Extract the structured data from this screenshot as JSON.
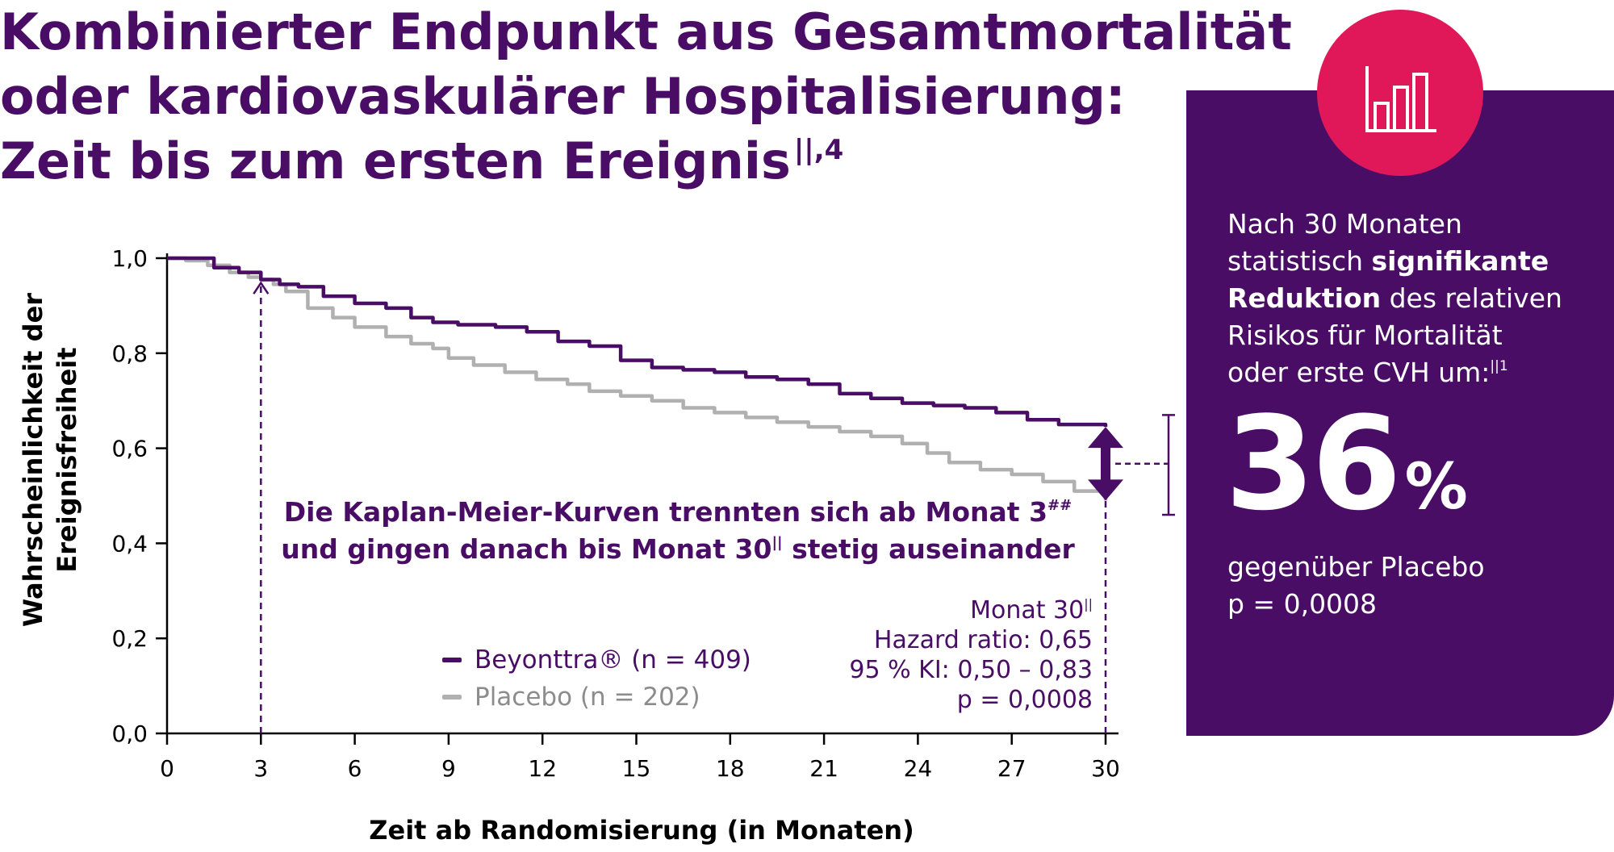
{
  "title": {
    "line1": "Kombinierter Endpunkt aus Gesamtmortalität",
    "line2": "oder kardiovaskulärer Hospitalisierung:",
    "line3": "Zeit bis zum ersten Ereignis",
    "line3_superscript": "||,4"
  },
  "colors": {
    "brand_purple": "#4a0d66",
    "accent_pink": "#e0185a",
    "placebo_gray": "#b0b0b0"
  },
  "badge": {
    "icon": "bar-chart-icon"
  },
  "panel": {
    "line1": "Nach 30 Monaten",
    "line2_prefix": "statistisch ",
    "line2_bold": "signifikante",
    "line3_bold": "Reduktion",
    "line3_suffix": " des relativen",
    "line4": "Risikos für Mortalität",
    "line5": "oder erste CVH um:",
    "line5_superscript": "||1",
    "big_number": "36",
    "big_unit": "%",
    "foot1": "gegenüber Placebo",
    "foot2": "p = 0,0008"
  },
  "annotation": {
    "line1": "Die Kaplan-Meier-Kurven trennten sich ab Monat 3",
    "line1_superscript": "##",
    "line2_prefix": "und gingen danach bis Monat 30",
    "line2_superscript": "||",
    "line2_suffix": " stetig auseinander"
  },
  "stats": {
    "line1": "Monat 30",
    "line1_superscript": "||",
    "line2": "Hazard ratio: 0,65",
    "line3": "95 % KI: 0,50 – 0,83",
    "line4": "p = 0,0008"
  },
  "chart_data": {
    "type": "line",
    "xlabel": "Zeit ab Randomisierung (in Monaten)",
    "ylabel": "Wahrscheinlichkeit der Ereignisfreiheit",
    "xlim": [
      0,
      30
    ],
    "ylim": [
      0,
      1
    ],
    "x_ticks": [
      "0",
      "3",
      "6",
      "9",
      "12",
      "15",
      "18",
      "21",
      "24",
      "27",
      "30"
    ],
    "y_ticks": [
      "0,0",
      "0,2",
      "0,4",
      "0,6",
      "0,8",
      "1,0"
    ],
    "x_tick_values": [
      0,
      3,
      6,
      9,
      12,
      15,
      18,
      21,
      24,
      27,
      30
    ],
    "y_tick_values": [
      0,
      0.2,
      0.4,
      0.6,
      0.8,
      1.0
    ],
    "grid": false,
    "legend": "bottom-center",
    "series": [
      {
        "name": "Beyonttra® (n = 409)",
        "color": "#4a0d66",
        "x": [
          0,
          0.8,
          1.5,
          2.3,
          3.0,
          3.6,
          4.2,
          5.0,
          6.0,
          7.0,
          7.8,
          8.5,
          9.3,
          10.5,
          11.5,
          12.5,
          13.5,
          14.5,
          15.5,
          16.5,
          17.5,
          18.5,
          19.5,
          20.5,
          21.5,
          22.5,
          23.5,
          24.5,
          25.5,
          26.5,
          27.5,
          28.5,
          30.0
        ],
        "y": [
          1.0,
          1.0,
          0.98,
          0.97,
          0.955,
          0.945,
          0.94,
          0.92,
          0.905,
          0.895,
          0.875,
          0.865,
          0.86,
          0.855,
          0.845,
          0.825,
          0.815,
          0.785,
          0.77,
          0.765,
          0.76,
          0.75,
          0.745,
          0.735,
          0.715,
          0.705,
          0.695,
          0.69,
          0.685,
          0.675,
          0.66,
          0.65,
          0.645
        ]
      },
      {
        "name": "Placebo (n = 202)",
        "color": "#b0b0b0",
        "x": [
          0,
          0.6,
          1.3,
          2.0,
          2.6,
          3.0,
          3.4,
          3.8,
          4.5,
          5.3,
          6.0,
          7.0,
          7.8,
          8.5,
          9.0,
          9.8,
          10.8,
          11.8,
          12.8,
          13.5,
          14.5,
          15.5,
          16.5,
          17.5,
          18.5,
          19.5,
          20.5,
          21.5,
          22.5,
          23.5,
          24.3,
          25.0,
          26.0,
          27.0,
          28.0,
          29.0,
          30.0
        ],
        "y": [
          1.0,
          0.995,
          0.985,
          0.97,
          0.96,
          0.955,
          0.945,
          0.93,
          0.895,
          0.875,
          0.855,
          0.835,
          0.82,
          0.81,
          0.79,
          0.775,
          0.76,
          0.745,
          0.735,
          0.72,
          0.71,
          0.7,
          0.685,
          0.675,
          0.665,
          0.655,
          0.645,
          0.635,
          0.625,
          0.61,
          0.59,
          0.57,
          0.555,
          0.545,
          0.53,
          0.51,
          0.49
        ]
      }
    ],
    "annotations": {
      "vertical_markers_at_x": [
        3,
        30
      ],
      "difference_at_x": 30,
      "difference_between_y": [
        0.645,
        0.49
      ]
    }
  }
}
